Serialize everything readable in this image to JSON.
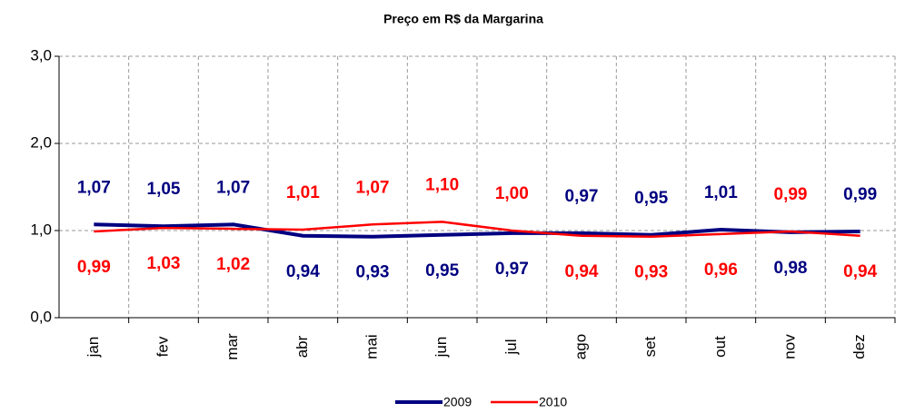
{
  "chart_data": {
    "type": "line",
    "title": "Preço em R$ da Margarina",
    "categories": [
      "jan",
      "fev",
      "mar",
      "abr",
      "mai",
      "jun",
      "jul",
      "ago",
      "set",
      "out",
      "nov",
      "dez"
    ],
    "series": [
      {
        "name": "2009",
        "color": "#000080",
        "values": [
          1.07,
          1.05,
          1.07,
          0.94,
          0.93,
          0.95,
          0.97,
          0.97,
          0.95,
          1.01,
          0.98,
          0.99
        ],
        "value_labels": [
          "1,07",
          "1,05",
          "1,07",
          "0,94",
          "0,93",
          "0,95",
          "0,97",
          "0,97",
          "0,95",
          "1,01",
          "0,98",
          "0,99"
        ]
      },
      {
        "name": "2010",
        "color": "#ff0000",
        "values": [
          0.99,
          1.03,
          1.02,
          1.01,
          1.07,
          1.1,
          1.0,
          0.94,
          0.93,
          0.96,
          0.99,
          0.94
        ],
        "value_labels": [
          "0,99",
          "1,03",
          "1,02",
          "1,01",
          "1,07",
          "1,10",
          "1,00",
          "0,94",
          "0,93",
          "0,96",
          "0,99",
          "0,94"
        ]
      }
    ],
    "ylim": [
      0,
      3
    ],
    "yticks": [
      {
        "value": 0,
        "label": "0,0"
      },
      {
        "value": 1,
        "label": "1,0"
      },
      {
        "value": 2,
        "label": "2,0"
      },
      {
        "value": 3,
        "label": "3,0"
      }
    ],
    "grid": true,
    "legend": "bottom"
  }
}
